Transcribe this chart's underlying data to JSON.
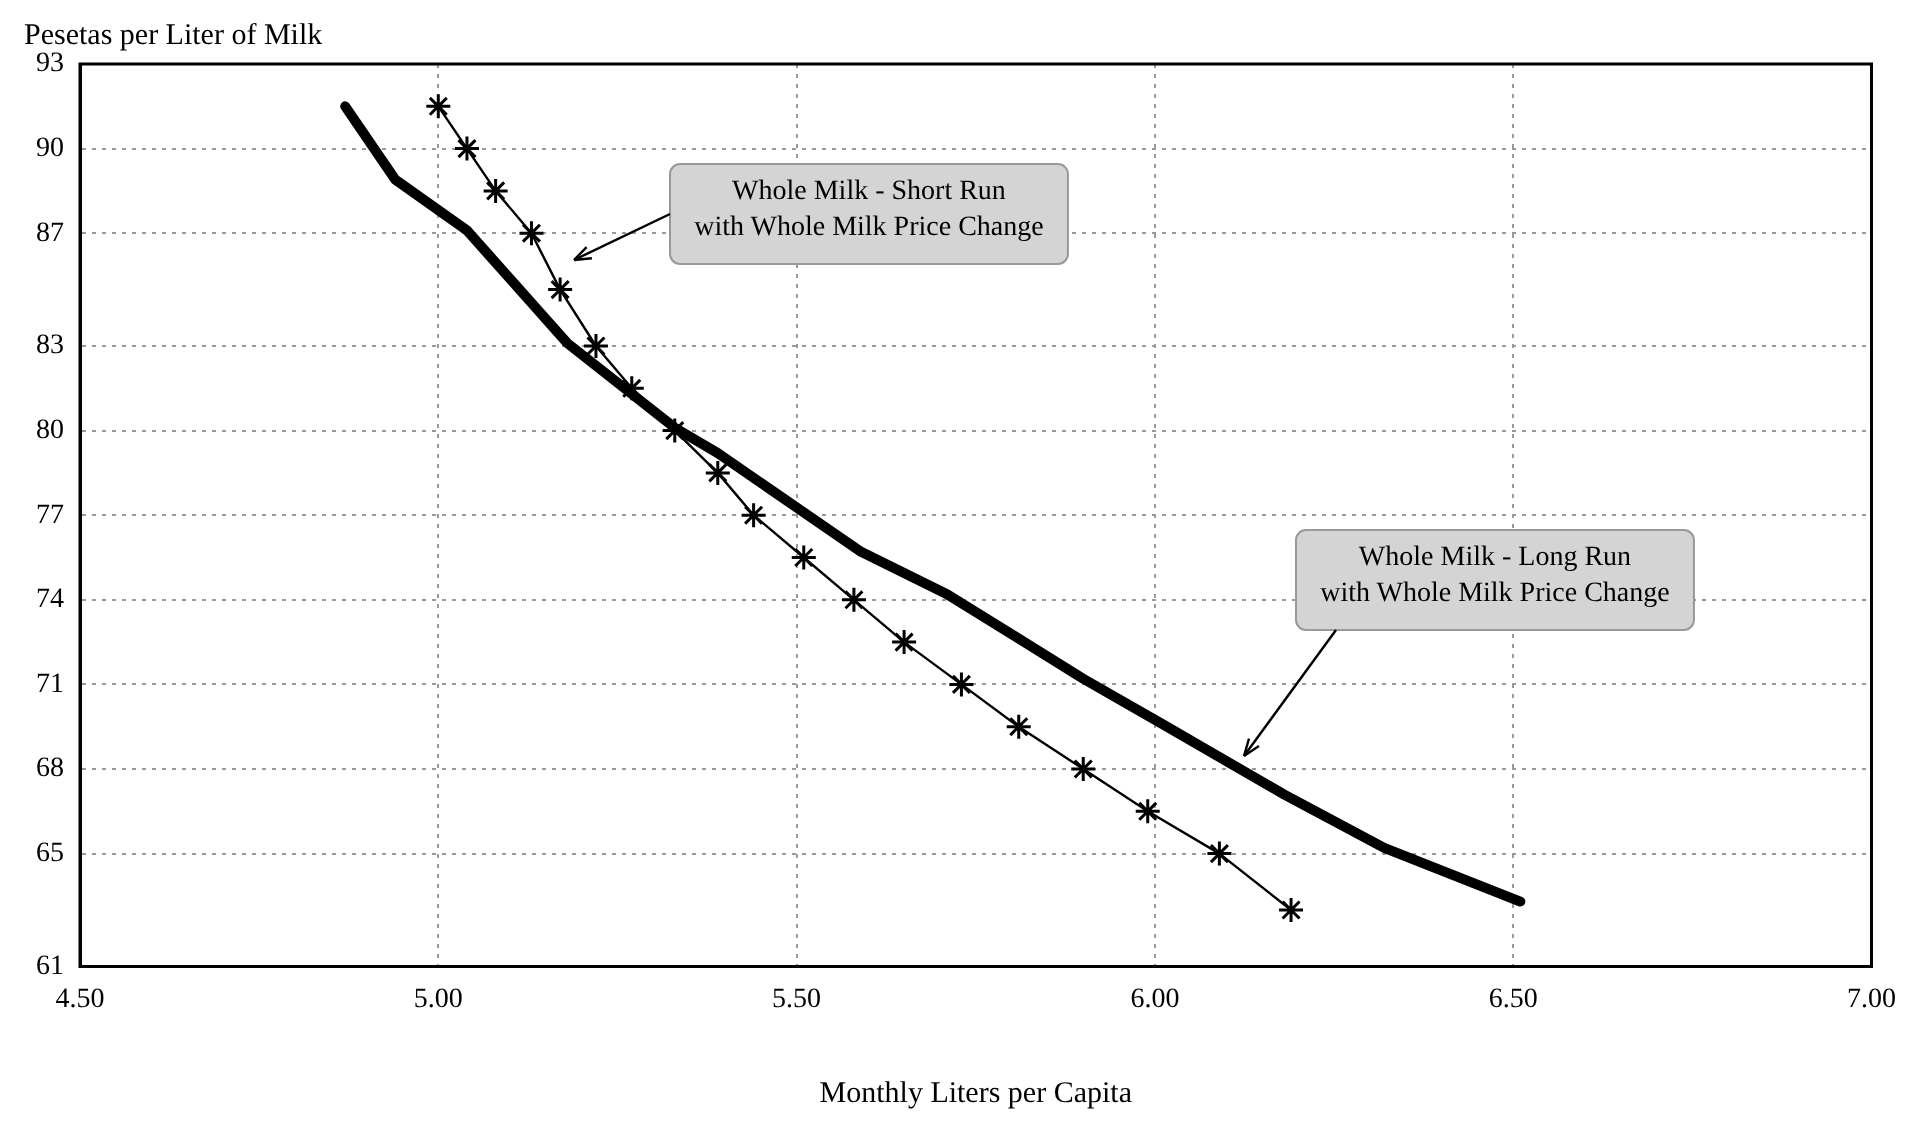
{
  "chart_data": {
    "type": "line",
    "ylabel": "Pesetas per Liter of Milk",
    "xlabel": "Monthly Liters per Capita",
    "xlim": [
      4.5,
      7.0
    ],
    "xticks": [
      {
        "value": 4.5,
        "label": "4.50"
      },
      {
        "value": 5.0,
        "label": "5.00"
      },
      {
        "value": 5.5,
        "label": "5.50"
      },
      {
        "value": 6.0,
        "label": "6.00"
      },
      {
        "value": 6.5,
        "label": "6.50"
      },
      {
        "value": 7.0,
        "label": "7.00"
      }
    ],
    "ylim": [
      61,
      93
    ],
    "yticks": [
      61,
      65,
      68,
      71,
      74,
      77,
      80,
      83,
      87,
      90,
      93
    ],
    "grid": true,
    "legend": false,
    "series": [
      {
        "color": "#000000",
        "marker": "none",
        "x": [
          4.87,
          4.94,
          5.04,
          5.18,
          5.33,
          5.39,
          5.51,
          5.59,
          5.71,
          5.9,
          6.01,
          6.18,
          6.32,
          6.51
        ],
        "values": [
          91.5,
          88.9,
          87.1,
          83.1,
          80.1,
          79.2,
          77.1,
          75.7,
          74.2,
          71.2,
          69.6,
          67.1,
          65.2,
          63.3
        ]
      },
      {
        "color": "#000000",
        "marker": "cross",
        "x": [
          5.0,
          5.04,
          5.08,
          5.13,
          5.17,
          5.22,
          5.27,
          5.33,
          5.39,
          5.44,
          5.51,
          5.58,
          5.65,
          5.73,
          5.81,
          5.9,
          5.99,
          6.09,
          6.19
        ],
        "values": [
          91.5,
          90,
          88.5,
          87,
          85,
          83,
          81.5,
          80,
          78.5,
          77,
          75.5,
          74,
          72.5,
          71,
          69.5,
          68,
          66.5,
          65,
          63
        ]
      }
    ],
    "annotations": [
      "Whole Milk - Short Run\nwith Whole Milk Price Change",
      "Whole Milk - Long Run\nwith Whole Milk Price Change"
    ]
  }
}
